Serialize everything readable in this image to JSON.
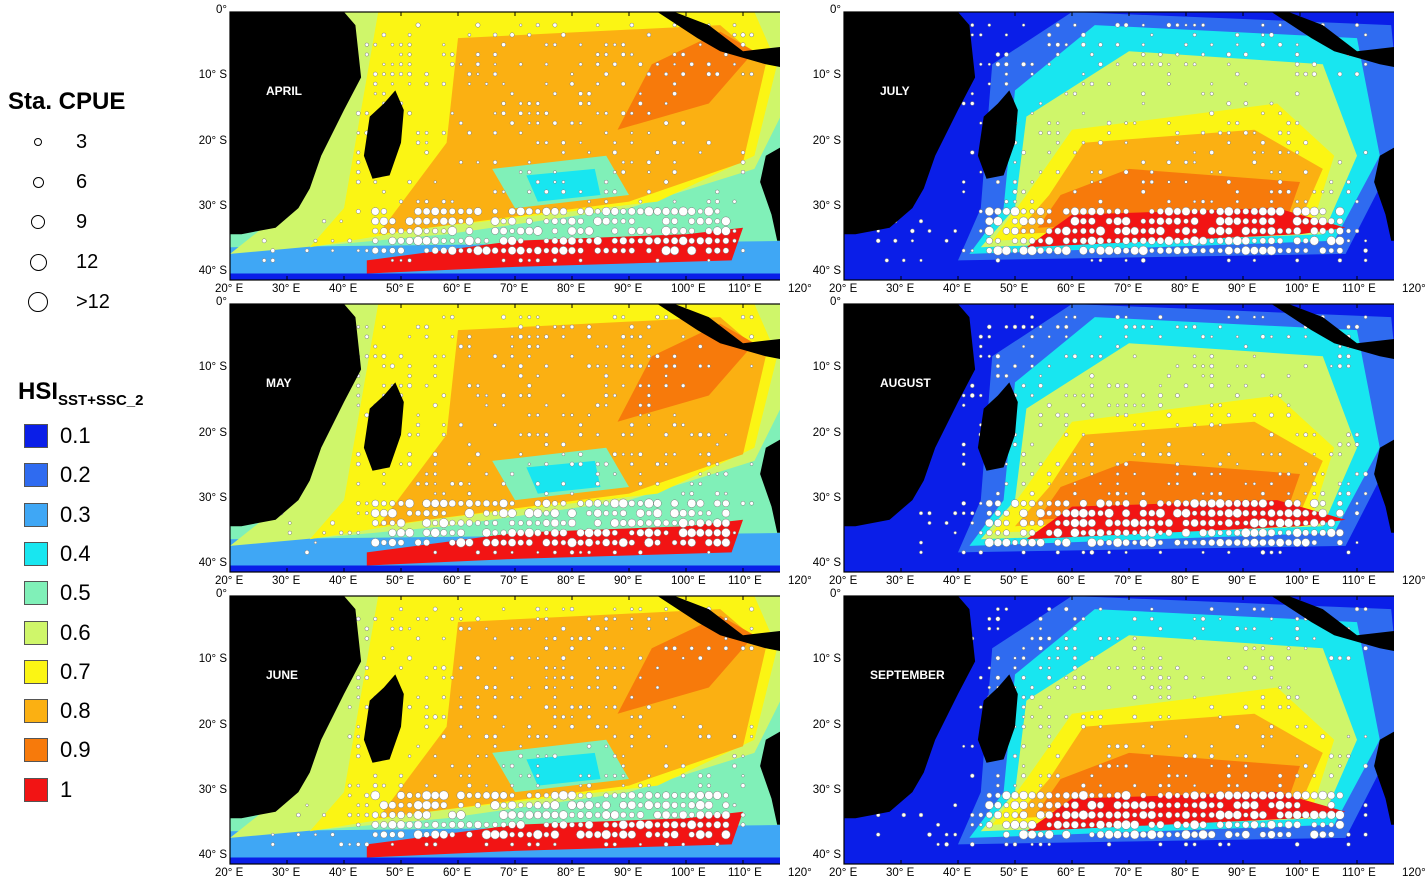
{
  "legend": {
    "cpue_title": "Sta. CPUE",
    "cpue_items": [
      {
        "label": "3",
        "size": 3
      },
      {
        "label": "6",
        "size": 6
      },
      {
        "label": "9",
        "size": 9
      },
      {
        "label": "12",
        "size": 12
      },
      {
        "label": ">12",
        "size": 15
      }
    ],
    "hsi_title": "HSI",
    "hsi_subscript": "SST+SSC_2",
    "hsi_items": [
      {
        "label": "0.1",
        "color": "#0a1ee8"
      },
      {
        "label": "0.2",
        "color": "#2f6bf0"
      },
      {
        "label": "0.3",
        "color": "#3fa7f5"
      },
      {
        "label": "0.4",
        "color": "#18e6f0"
      },
      {
        "label": "0.5",
        "color": "#80f0b8"
      },
      {
        "label": "0.6",
        "color": "#cff66a"
      },
      {
        "label": "0.7",
        "color": "#fbf514"
      },
      {
        "label": "0.8",
        "color": "#fbb012"
      },
      {
        "label": "0.9",
        "color": "#f77a0b"
      },
      {
        "label": "1",
        "color": "#f21414"
      }
    ]
  },
  "axes": {
    "y_labels": [
      "0°",
      "10° S",
      "20° S",
      "30° S",
      "40° S"
    ],
    "x_labels": [
      "20° E",
      "30° E",
      "40° E",
      "50° E",
      "60° E",
      "70° E",
      "80° E",
      "90° E",
      "100° E",
      "110° E",
      "120°"
    ],
    "x_labels_right": [
      "20° E",
      "30° E",
      "40° E",
      "50° E",
      "60° E",
      "70° E",
      "80° E",
      "90° E",
      "100° E",
      "110° E",
      "120°"
    ]
  },
  "panels": [
    {
      "month": "APRIL"
    },
    {
      "month": "JULY"
    },
    {
      "month": "MAY"
    },
    {
      "month": "AUGUST"
    },
    {
      "month": "JUNE"
    },
    {
      "month": "SEPTEMBER"
    }
  ],
  "colors": {
    "land": "#000000",
    "dot_fill": "#ffffff",
    "dot_stroke": "#7a7a7a"
  }
}
